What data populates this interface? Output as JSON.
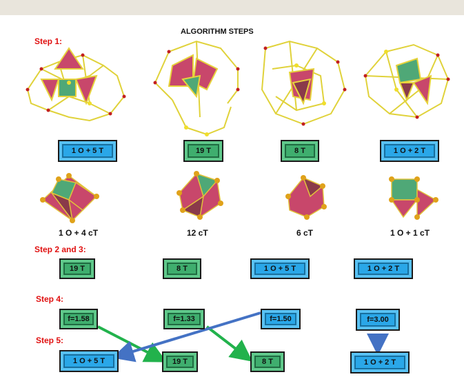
{
  "title": "ALGORITHM STEPS",
  "steps": {
    "s1": "Step 1:",
    "s23": "Step 2 and 3:",
    "s4": "Step 4:",
    "s5": "Step 5:"
  },
  "row1_boxes": [
    "1 O + 5 T",
    "19 T",
    "8 T",
    "1 O + 2 T"
  ],
  "captions": [
    "1 O + 4 cT",
    "12 cT",
    "6 cT",
    "1 O + 1 cT"
  ],
  "row23_boxes": [
    "19 T",
    "8 T",
    "1 O + 5 T",
    "1 O + 2 T"
  ],
  "row4_boxes": [
    "f=1.58",
    "f=1.33",
    "f=1.50",
    "f=3.00"
  ],
  "row5_boxes": [
    "1 O + 5 T",
    "19 T",
    "8 T",
    "1 O + 2 T"
  ],
  "colors": {
    "blue": "#2aa7e8",
    "green": "#3fae6e",
    "arrow_green": "#22b24c",
    "arrow_blue": "#4472c4",
    "step_red": "#e01010"
  }
}
